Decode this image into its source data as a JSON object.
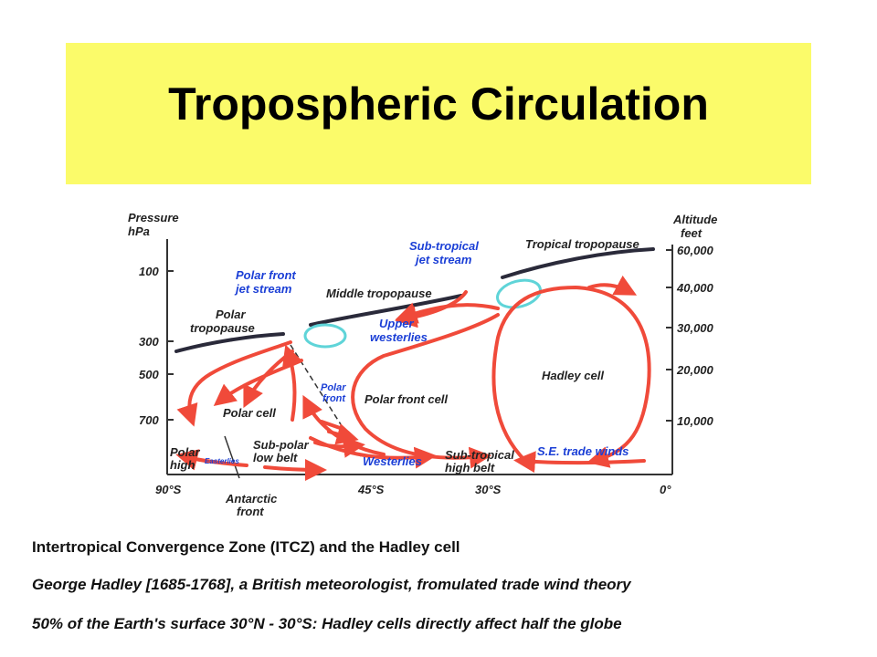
{
  "title": "Tropospheric Circulation",
  "diagram": {
    "left_axis": {
      "label_line1": "Pressure",
      "label_line2": "hPa",
      "ticks": [
        "100",
        "300",
        "500",
        "700"
      ]
    },
    "right_axis": {
      "label_line1": "Altitude",
      "label_line2": "feet",
      "ticks": [
        "60,000",
        "40,000",
        "30,000",
        "20,000",
        "10,000"
      ]
    },
    "bottom_axis": {
      "ticks": [
        "90°S",
        "45°S",
        "30°S",
        "0°"
      ]
    },
    "labels": {
      "tropical_tropopause": "Tropical tropopause",
      "subtropical_jet_1": "Sub-tropical",
      "subtropical_jet_2": "jet stream",
      "polar_front_jet_1": "Polar front",
      "polar_front_jet_2": "jet stream",
      "middle_tropopause": "Middle tropopause",
      "polar_tropopause_1": "Polar",
      "polar_tropopause_2": "tropopause",
      "upper_westerlies_1": "Upper",
      "upper_westerlies_2": "westerlies",
      "hadley_cell": "Hadley cell",
      "polar_front_1": "Polar",
      "polar_front_2": "front",
      "polar_front_cell": "Polar front cell",
      "polar_cell": "Polar cell",
      "polar_high_1": "Polar",
      "polar_high_2": "high",
      "easterlies": "Easterlies",
      "subpolar_low_1": "Sub-polar",
      "subpolar_low_2": "low belt",
      "westerlies": "Westerlies",
      "subtropical_high_1": "Sub-tropical",
      "subtropical_high_2": "high belt",
      "se_trade_winds": "S.E. trade winds",
      "antarctic_front_1": "Antarctic",
      "antarctic_front_2": "front"
    },
    "colors": {
      "circulation": "#f04a3a",
      "jet": "#5fd4d8",
      "jet_label": "#1b3fd6",
      "tropopause": "#2a2a3a"
    }
  },
  "captions": [
    "Intertropical Convergence Zone (ITCZ) and the Hadley cell",
    "George Hadley [1685-1768], a British meteorologist, fromulated trade wind theory",
    "50% of the Earth's surface 30°N - 30°S:  Hadley cells directly affect half the globe"
  ]
}
